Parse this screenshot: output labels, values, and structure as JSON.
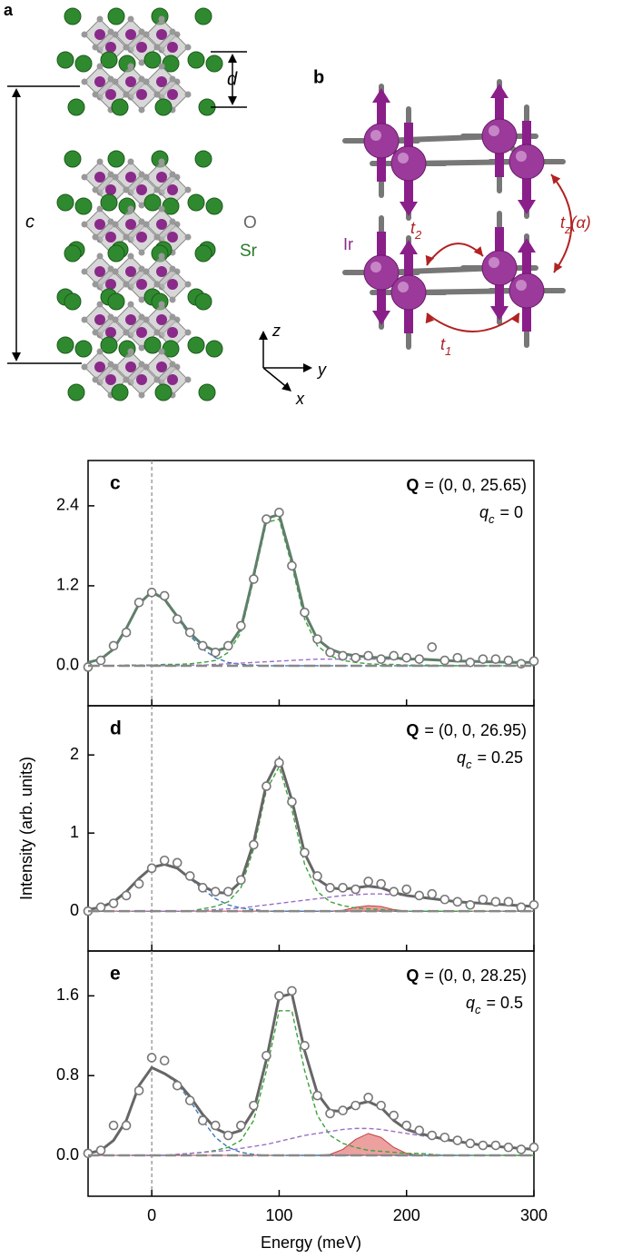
{
  "diagram_a": {
    "panel_label": "a",
    "c_label": "c",
    "d_label": "d",
    "o_label": "O",
    "sr_label": "Sr",
    "axis_z": "z",
    "axis_y": "y",
    "axis_x": "x"
  },
  "diagram_b": {
    "panel_label": "b",
    "ir_label": "Ir",
    "t1_symbol": "t",
    "t1_sub": "1",
    "t2_symbol": "t",
    "t2_sub": "2",
    "tz_symbol": "t",
    "tz_sub": "z",
    "tz_arg": "(α)"
  },
  "chart_data": [
    {
      "type": "line",
      "panel_label": "c",
      "q_symbol": "Q",
      "q_text": "= (0, 0, 25.65)",
      "qc_symbol": "q",
      "qc_sub": "c",
      "qc_text": "= 0",
      "xlim": [
        -50,
        300
      ],
      "ylim": [
        -0.6,
        3.08
      ],
      "yticks": [
        {
          "value": 0,
          "label": "0.0"
        },
        1.2,
        2.4
      ],
      "vline": 0,
      "x": [
        -50,
        -40,
        -30,
        -20,
        -10,
        0,
        10,
        20,
        30,
        40,
        50,
        60,
        70,
        80,
        90,
        100,
        110,
        120,
        130,
        140,
        150,
        160,
        170,
        180,
        190,
        200,
        210,
        220,
        230,
        240,
        250,
        260,
        270,
        280,
        290,
        300
      ],
      "series": [
        {
          "style": "dashed",
          "color": "#3a78b5",
          "values": [
            0.05,
            0.1,
            0.25,
            0.55,
            0.92,
            1.1,
            0.98,
            0.72,
            0.45,
            0.25,
            0.12,
            0.05,
            0.02,
            0.01,
            0,
            0,
            0,
            0,
            0,
            0,
            0,
            0,
            0,
            0,
            0,
            0,
            0,
            0,
            0,
            0,
            0,
            0,
            0,
            0,
            0,
            0
          ]
        },
        {
          "style": "dashed",
          "color": "#3aa33a",
          "values": [
            0,
            0,
            0,
            0.01,
            0.01,
            0.01,
            0.02,
            0.02,
            0.03,
            0.05,
            0.08,
            0.2,
            0.5,
            1.3,
            2.15,
            2.2,
            1.5,
            0.7,
            0.3,
            0.15,
            0.08,
            0.05,
            0.03,
            0.02,
            0.02,
            0.01,
            0.01,
            0.01,
            0,
            0,
            0,
            0,
            0,
            0,
            0,
            0
          ]
        },
        {
          "style": "dashed",
          "color": "#9a6fc8",
          "values": [
            0,
            0,
            0,
            0,
            0,
            0,
            0,
            0,
            0.01,
            0.01,
            0.02,
            0.03,
            0.04,
            0.05,
            0.06,
            0.07,
            0.08,
            0.09,
            0.1,
            0.1,
            0.1,
            0.1,
            0.1,
            0.1,
            0.1,
            0.09,
            0.09,
            0.08,
            0.08,
            0.07,
            0.07,
            0.06,
            0.06,
            0.05,
            0.05,
            0.05
          ]
        },
        {
          "style": "line",
          "color": "#5f7f6a",
          "values": [
            0.05,
            0.1,
            0.25,
            0.56,
            0.93,
            1.11,
            1.0,
            0.74,
            0.49,
            0.31,
            0.22,
            0.28,
            0.56,
            1.36,
            2.21,
            2.27,
            1.58,
            0.79,
            0.4,
            0.25,
            0.18,
            0.15,
            0.13,
            0.12,
            0.12,
            0.1,
            0.1,
            0.09,
            0.08,
            0.07,
            0.07,
            0.06,
            0.06,
            0.05,
            0.05,
            0.05
          ]
        },
        {
          "style": "points",
          "color": "#777777",
          "values": [
            -0.02,
            0.08,
            0.3,
            0.5,
            0.95,
            1.1,
            1.05,
            0.7,
            0.5,
            0.3,
            0.2,
            0.3,
            0.6,
            1.3,
            2.2,
            2.3,
            1.5,
            0.8,
            0.4,
            0.2,
            0.15,
            0.12,
            0.15,
            0.1,
            0.15,
            0.12,
            0.1,
            0.28,
            0.08,
            0.12,
            0.05,
            0.1,
            0.1,
            0.08,
            0.03,
            0.07
          ]
        }
      ]
    },
    {
      "type": "line",
      "panel_label": "d",
      "q_symbol": "Q",
      "q_text": "= (0, 0, 26.95)",
      "qc_symbol": "q",
      "qc_sub": "c",
      "qc_text": "= 0.25",
      "ylabel": "Intensity (arb. units)",
      "xlim": [
        -50,
        300
      ],
      "ylim": [
        -0.51,
        2.63
      ],
      "yticks": [
        0,
        1,
        2
      ],
      "vline": 0,
      "x": [
        -50,
        -40,
        -30,
        -20,
        -10,
        0,
        10,
        20,
        30,
        40,
        50,
        60,
        70,
        80,
        90,
        100,
        110,
        120,
        130,
        140,
        150,
        160,
        170,
        180,
        190,
        200,
        210,
        220,
        230,
        240,
        250,
        260,
        270,
        280,
        290,
        300
      ],
      "series": [
        {
          "style": "area",
          "color": "#e06060",
          "values": [
            0,
            0,
            0,
            0,
            0,
            0,
            0,
            0,
            0,
            0,
            0,
            0,
            0,
            0,
            0,
            0,
            0,
            0,
            0,
            0,
            0.01,
            0.05,
            0.07,
            0.06,
            0.02,
            0,
            0,
            0,
            0,
            0,
            0,
            0,
            0,
            0,
            0,
            0
          ]
        },
        {
          "style": "dashed",
          "color": "#3a78b5",
          "values": [
            0.02,
            0.05,
            0.12,
            0.25,
            0.42,
            0.56,
            0.6,
            0.55,
            0.42,
            0.28,
            0.16,
            0.08,
            0.04,
            0.02,
            0,
            0,
            0,
            0,
            0,
            0,
            0,
            0,
            0,
            0,
            0,
            0,
            0,
            0,
            0,
            0,
            0,
            0,
            0,
            0,
            0,
            0
          ]
        },
        {
          "style": "dashed",
          "color": "#3aa33a",
          "values": [
            0,
            0,
            0,
            0,
            0,
            0,
            0,
            0,
            0,
            0.03,
            0.06,
            0.12,
            0.3,
            0.8,
            1.55,
            1.85,
            1.3,
            0.6,
            0.25,
            0.12,
            0.07,
            0.04,
            0.03,
            0.02,
            0.01,
            0,
            0,
            0,
            0,
            0,
            0,
            0,
            0,
            0,
            0,
            0
          ]
        },
        {
          "style": "dashed",
          "color": "#9a6fc8",
          "values": [
            0,
            0,
            0,
            0,
            0,
            0,
            0,
            0,
            0,
            0.01,
            0.02,
            0.03,
            0.04,
            0.06,
            0.08,
            0.1,
            0.12,
            0.14,
            0.16,
            0.18,
            0.2,
            0.21,
            0.22,
            0.22,
            0.21,
            0.2,
            0.18,
            0.16,
            0.14,
            0.12,
            0.11,
            0.1,
            0.09,
            0.08,
            0.07,
            0.06
          ]
        },
        {
          "style": "line",
          "color": "#666666",
          "values": [
            0.02,
            0.05,
            0.12,
            0.25,
            0.42,
            0.56,
            0.6,
            0.55,
            0.42,
            0.32,
            0.24,
            0.23,
            0.38,
            0.88,
            1.63,
            1.95,
            1.42,
            0.74,
            0.41,
            0.3,
            0.28,
            0.3,
            0.32,
            0.3,
            0.24,
            0.2,
            0.18,
            0.16,
            0.14,
            0.12,
            0.11,
            0.1,
            0.09,
            0.08,
            0.07,
            0.06
          ]
        },
        {
          "style": "points",
          "color": "#777777",
          "values": [
            0,
            0.05,
            0.1,
            0.2,
            0.35,
            0.55,
            0.65,
            0.62,
            0.45,
            0.3,
            0.25,
            0.25,
            0.4,
            0.85,
            1.6,
            1.9,
            1.4,
            0.75,
            0.45,
            0.3,
            0.3,
            0.28,
            0.38,
            0.35,
            0.25,
            0.28,
            0.2,
            0.22,
            0.15,
            0.12,
            0.08,
            0.15,
            0.12,
            0.12,
            0.05,
            0.08
          ]
        }
      ]
    },
    {
      "type": "line",
      "panel_label": "e",
      "q_symbol": "Q",
      "q_text": "= (0, 0, 28.25)",
      "qc_symbol": "q",
      "qc_sub": "c",
      "qc_text": "= 0.5",
      "xlabel": "Energy (meV)",
      "xlim": [
        -50,
        300
      ],
      "ylim": [
        -0.41,
        2.05
      ],
      "yticks": [
        {
          "value": 0,
          "label": "0.0"
        },
        0.8,
        1.6
      ],
      "xticks": [
        0,
        100,
        200,
        300
      ],
      "vline": 0,
      "x": [
        -50,
        -40,
        -30,
        -20,
        -10,
        0,
        10,
        20,
        30,
        40,
        50,
        60,
        70,
        80,
        90,
        100,
        110,
        120,
        130,
        140,
        150,
        160,
        170,
        180,
        190,
        200,
        210,
        220,
        230,
        240,
        250,
        260,
        270,
        280,
        290,
        300
      ],
      "series": [
        {
          "style": "area",
          "color": "#e06060",
          "values": [
            0,
            0,
            0,
            0,
            0,
            0,
            0,
            0,
            0,
            0,
            0,
            0,
            0,
            0,
            0,
            0,
            0,
            0,
            0,
            0.01,
            0.06,
            0.16,
            0.22,
            0.18,
            0.08,
            0.02,
            0,
            0,
            0,
            0,
            0,
            0,
            0,
            0,
            0,
            0
          ]
        },
        {
          "style": "dashed",
          "color": "#3a78b5",
          "values": [
            0.02,
            0.05,
            0.15,
            0.35,
            0.7,
            0.88,
            0.82,
            0.72,
            0.55,
            0.35,
            0.18,
            0.08,
            0.03,
            0.01,
            0,
            0,
            0,
            0,
            0,
            0,
            0,
            0,
            0,
            0,
            0,
            0,
            0,
            0,
            0,
            0,
            0,
            0,
            0,
            0,
            0,
            0
          ]
        },
        {
          "style": "dashed",
          "color": "#3aa33a",
          "values": [
            0,
            0,
            0,
            0,
            0,
            0,
            0,
            0.01,
            0.02,
            0.03,
            0.05,
            0.08,
            0.15,
            0.35,
            0.85,
            1.45,
            1.45,
            0.85,
            0.4,
            0.2,
            0.12,
            0.08,
            0.05,
            0.04,
            0.03,
            0.02,
            0.02,
            0.01,
            0,
            0,
            0,
            0,
            0,
            0,
            0,
            0
          ]
        },
        {
          "style": "dashed",
          "color": "#9a6fc8",
          "values": [
            0,
            0,
            0,
            0,
            0,
            0,
            0,
            0.01,
            0.02,
            0.03,
            0.04,
            0.05,
            0.07,
            0.09,
            0.11,
            0.14,
            0.17,
            0.2,
            0.22,
            0.24,
            0.26,
            0.27,
            0.27,
            0.26,
            0.24,
            0.22,
            0.2,
            0.18,
            0.16,
            0.14,
            0.12,
            0.1,
            0.09,
            0.08,
            0.07,
            0.06
          ]
        },
        {
          "style": "line",
          "color": "#666666",
          "values": [
            0.02,
            0.05,
            0.15,
            0.35,
            0.7,
            0.88,
            0.82,
            0.74,
            0.59,
            0.41,
            0.27,
            0.21,
            0.25,
            0.45,
            0.96,
            1.59,
            1.62,
            1.05,
            0.62,
            0.45,
            0.44,
            0.51,
            0.54,
            0.48,
            0.35,
            0.26,
            0.22,
            0.19,
            0.16,
            0.14,
            0.12,
            0.1,
            0.09,
            0.08,
            0.07,
            0.06
          ]
        },
        {
          "style": "points",
          "color": "#777777",
          "values": [
            0.02,
            0.05,
            0.3,
            0.3,
            0.65,
            0.98,
            0.95,
            0.7,
            0.55,
            0.35,
            0.3,
            0.2,
            0.3,
            0.5,
            1.0,
            1.6,
            1.65,
            1.1,
            0.6,
            0.42,
            0.45,
            0.5,
            0.58,
            0.5,
            0.4,
            0.3,
            0.25,
            0.2,
            0.18,
            0.15,
            0.12,
            0.1,
            0.1,
            0.08,
            0.06,
            0.08
          ]
        }
      ]
    }
  ]
}
